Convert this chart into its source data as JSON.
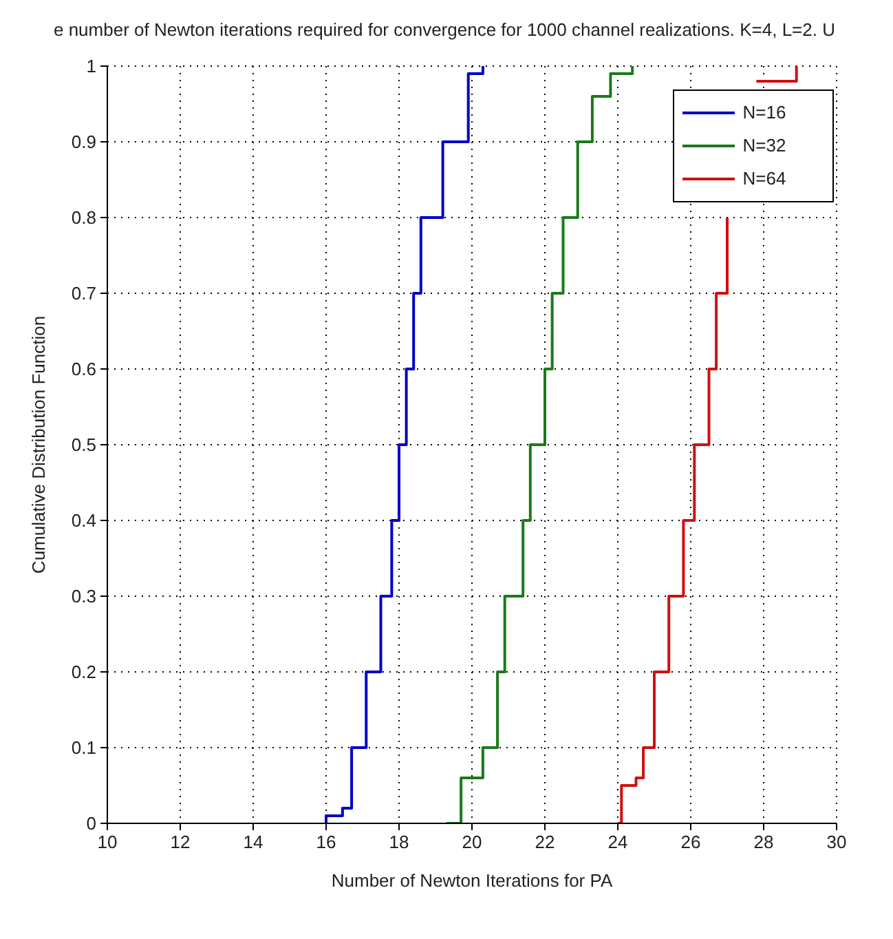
{
  "chart_data": {
    "type": "step",
    "title": "e number of Newton iterations required for convergence for 1000 channel realizations. K=4, L=2. U",
    "xlabel": "Number of Newton Iterations for PA",
    "ylabel": "Cumulative Distribution Function",
    "xlim": [
      10,
      30
    ],
    "xticks": [
      10,
      12,
      14,
      16,
      18,
      20,
      22,
      24,
      26,
      28,
      30
    ],
    "ylim": [
      0,
      1
    ],
    "yticks": [
      0,
      0.1,
      0.2,
      0.3,
      0.4,
      0.5,
      0.6,
      0.7,
      0.8,
      0.9,
      1
    ],
    "grid": true,
    "legend": "top right",
    "marker": "none",
    "line_style": "solid",
    "series": [
      {
        "name": "N=16",
        "color": "#0000c8",
        "x": [
          16.0,
          16.0,
          16.45,
          16.7,
          17.1,
          17.5,
          17.8,
          18.0,
          18.2,
          18.4,
          18.6,
          19.2,
          19.9,
          20.3
        ],
        "values": [
          0,
          0.01,
          0.02,
          0.1,
          0.2,
          0.3,
          0.4,
          0.5,
          0.6,
          0.7,
          0.8,
          0.9,
          0.99,
          1
        ]
      },
      {
        "name": "N=32",
        "color": "#1a7a1a",
        "x": [
          19.3,
          19.7,
          20.3,
          20.7,
          20.9,
          21.4,
          21.6,
          22.0,
          22.2,
          22.5,
          22.9,
          23.3,
          23.8,
          24.4
        ],
        "values": [
          0,
          0.06,
          0.1,
          0.2,
          0.3,
          0.4,
          0.5,
          0.6,
          0.7,
          0.8,
          0.9,
          0.96,
          0.99,
          1
        ]
      },
      {
        "name": "N=64",
        "color": "#d01010",
        "x": [
          24.0,
          24.1,
          24.5,
          24.7,
          25.0,
          25.4,
          25.8,
          26.1,
          26.5,
          26.7,
          27.0,
          27.4,
          27.8,
          28.9
        ],
        "values": [
          0,
          0.05,
          0.06,
          0.1,
          0.2,
          0.3,
          0.4,
          0.5,
          0.6,
          0.7,
          0.8,
          null,
          0.98,
          1
        ]
      }
    ]
  }
}
